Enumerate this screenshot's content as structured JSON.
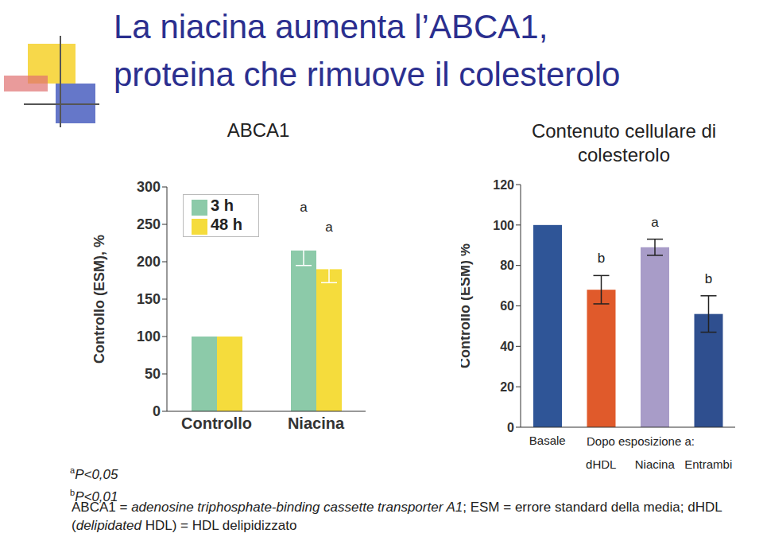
{
  "slide": {
    "title": [
      "La niacina aumenta l’ABCA1,",
      "proteina che rimuove il colesterolo"
    ],
    "notes": [
      {
        "sup": "a",
        "text": "P<0,05"
      },
      {
        "sup": "b",
        "text": "P<0,01"
      }
    ],
    "abbreviations": [
      {
        "text": "ABCA1 = "
      },
      {
        "text": "adenosine triphosphate-binding cassette transporter A1",
        "italic": true
      },
      {
        "text": "; ESM = errore standard della media; dHDL ("
      },
      {
        "text": "delipidated",
        "italic": true
      },
      {
        "text": " HDL) = HDL delipidizzato"
      }
    ]
  },
  "chart_data": [
    {
      "type": "bar",
      "title": "ABCA1",
      "y_label": "Controllo (ESM), %",
      "categories": [
        "Controllo",
        "Niacina"
      ],
      "series": [
        {
          "name": "3 h",
          "color": "#8ccaa9",
          "values": [
            100,
            215
          ],
          "errors": [
            null,
            20
          ],
          "annotations": [
            null,
            "a"
          ]
        },
        {
          "name": "48 h",
          "color": "#f5dc3c",
          "values": [
            100,
            190
          ],
          "errors": [
            null,
            18
          ],
          "annotations": [
            null,
            "a"
          ]
        }
      ],
      "ylim": [
        0,
        300
      ],
      "yticks": [
        0,
        50,
        100,
        150,
        200,
        250,
        300
      ],
      "legend": "upper left"
    },
    {
      "type": "bar",
      "title": "Contenuto cellulare di colesterolo",
      "y_label": "Controllo (ESM) %",
      "categories": [
        "Basale",
        "dHDL",
        "Niacina",
        "Entrambi"
      ],
      "group_label": "Dopo esposizione a:",
      "values": [
        100,
        68,
        89,
        56
      ],
      "errors": [
        null,
        7,
        4,
        9
      ],
      "annotations": [
        null,
        "b",
        "a",
        "b"
      ],
      "colors": [
        "#2f5597",
        "#e05a2b",
        "#a89cc8",
        "#2f4f8f"
      ],
      "ylim": [
        0,
        120
      ],
      "yticks": [
        0,
        20,
        40,
        60,
        80,
        100,
        120
      ]
    }
  ]
}
